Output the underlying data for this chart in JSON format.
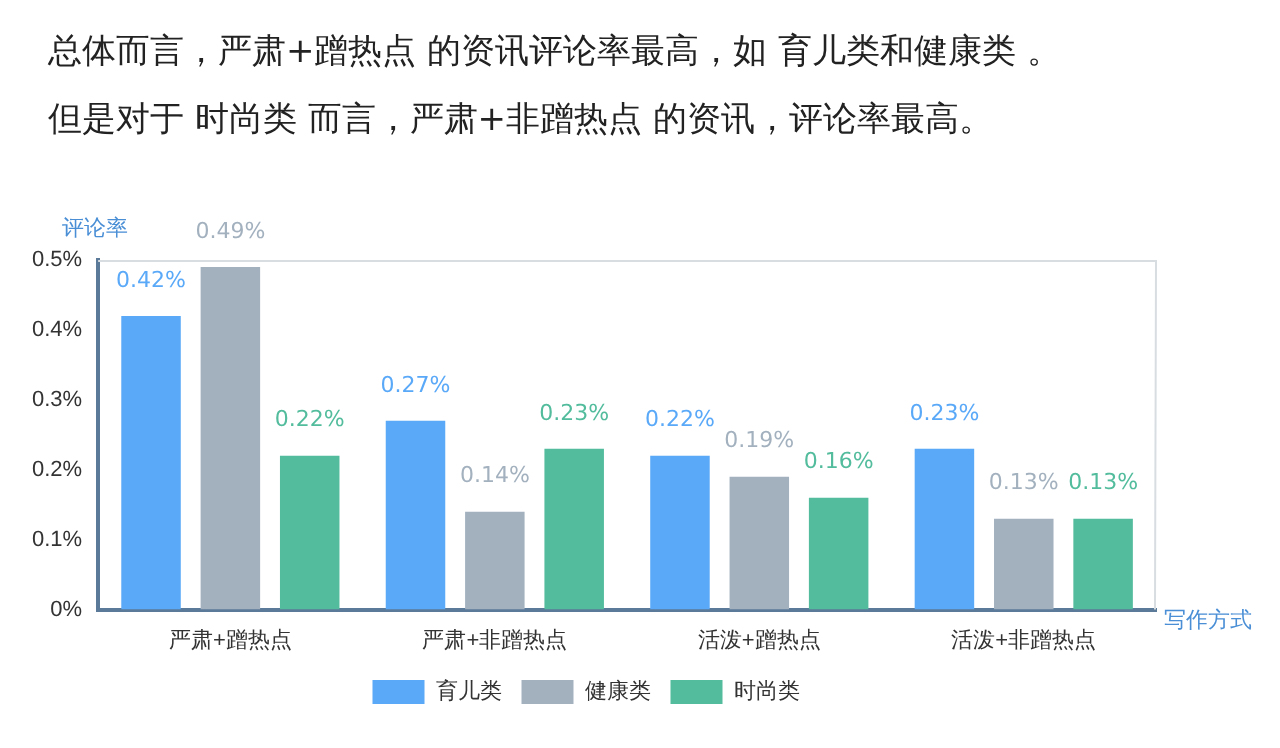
{
  "chart_data": {
    "type": "bar",
    "title": "总体而言，严肃+蹭热点 的资讯评论率最高，如 育儿类和健康类 。",
    "subtitle": "但是对于 时尚类 而言，严肃+非蹭热点 的资讯，评论率最高。",
    "ylabel": "评论率",
    "xlabel": "写作方式",
    "categories": [
      "严肃+蹭热点",
      "严肃+非蹭热点",
      "活泼+蹭热点",
      "活泼+非蹭热点"
    ],
    "series": [
      {
        "name": "育儿类",
        "color": "#5aa9f8",
        "values": [
          0.42,
          0.27,
          0.22,
          0.23
        ],
        "value_labels": [
          "0.42%",
          "0.27%",
          "0.22%",
          "0.23%"
        ]
      },
      {
        "name": "健康类",
        "color": "#a3b1bf",
        "values": [
          0.49,
          0.14,
          0.19,
          0.13
        ],
        "value_labels": [
          "0.49%",
          "0.14%",
          "0.19%",
          "0.13%"
        ]
      },
      {
        "name": "时尚类",
        "color": "#52bc9c",
        "values": [
          0.22,
          0.23,
          0.16,
          0.13
        ],
        "value_labels": [
          "0.22%",
          "0.23%",
          "0.16%",
          "0.13%"
        ]
      }
    ],
    "ylim": [
      0,
      0.5
    ],
    "yticks": [
      {
        "value": 0,
        "label": "0%"
      },
      {
        "value": 0.1,
        "label": "0.1%"
      },
      {
        "value": 0.2,
        "label": "0.2%"
      },
      {
        "value": 0.3,
        "label": "0.3%"
      },
      {
        "value": 0.4,
        "label": "0.4%"
      },
      {
        "value": 0.5,
        "label": "0.5%"
      }
    ],
    "grid": false,
    "legend": "bottom"
  }
}
